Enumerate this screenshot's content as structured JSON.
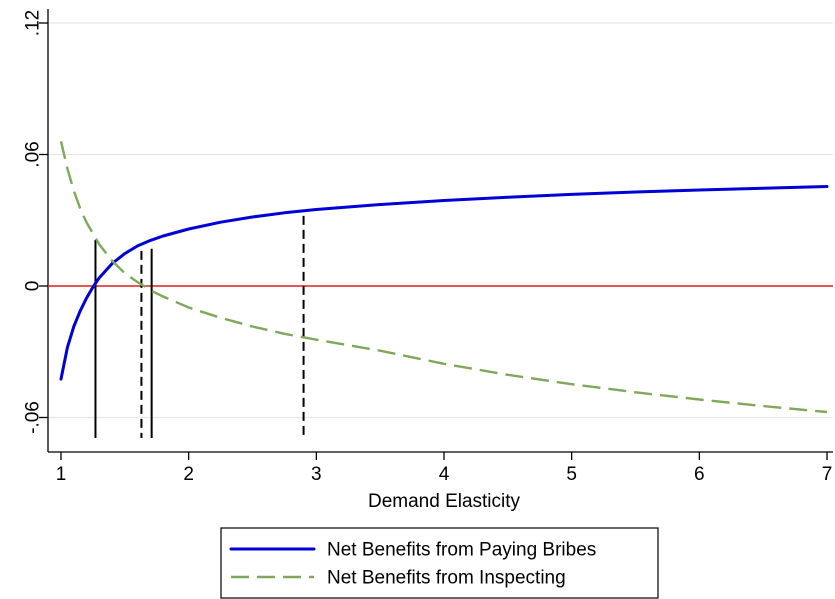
{
  "chart_data": {
    "type": "line",
    "title": "",
    "xlabel": "Demand Elasticity",
    "ylabel": "",
    "xlim": [
      1,
      7
    ],
    "ylim": [
      -0.07,
      0.12
    ],
    "x_ticks": [
      {
        "value": 1,
        "label": "1"
      },
      {
        "value": 2,
        "label": "2"
      },
      {
        "value": 3,
        "label": "3"
      },
      {
        "value": 4,
        "label": "4"
      },
      {
        "value": 5,
        "label": "5"
      },
      {
        "value": 6,
        "label": "6"
      },
      {
        "value": 7,
        "label": "7"
      }
    ],
    "y_ticks": [
      {
        "value": -0.06,
        "label": "-.06"
      },
      {
        "value": 0,
        "label": "0"
      },
      {
        "value": 0.06,
        "label": ".06"
      },
      {
        "value": 0.12,
        "label": ".12"
      }
    ],
    "grid": true,
    "legend_position": "bottom",
    "series": [
      {
        "name": "Net Benefits from Paying Bribes",
        "color": "#0000d6",
        "style": "solid",
        "x": [
          1.0,
          1.05,
          1.1,
          1.15,
          1.2,
          1.25,
          1.3,
          1.4,
          1.5,
          1.6,
          1.7,
          1.8,
          2.0,
          2.25,
          2.5,
          2.75,
          3.0,
          3.5,
          4.0,
          4.5,
          5.0,
          5.5,
          6.0,
          6.5,
          7.0
        ],
        "y": [
          -0.0425,
          -0.028,
          -0.0185,
          -0.0115,
          -0.0055,
          -0.0005,
          0.0038,
          0.0102,
          0.0148,
          0.0183,
          0.0208,
          0.0228,
          0.026,
          0.0291,
          0.0315,
          0.0334,
          0.0349,
          0.0372,
          0.039,
          0.0405,
          0.0418,
          0.0429,
          0.0438,
          0.0446,
          0.0454
        ]
      },
      {
        "name": "Net Benefits from Inspecting",
        "color": "#7fa85a",
        "style": "dashed",
        "x": [
          1.0,
          1.05,
          1.1,
          1.15,
          1.2,
          1.3,
          1.4,
          1.5,
          1.6,
          1.65,
          1.7,
          1.8,
          2.0,
          2.25,
          2.5,
          2.75,
          3.0,
          3.5,
          4.0,
          4.5,
          5.0,
          5.5,
          6.0,
          6.5,
          7.0
        ],
        "y": [
          0.066,
          0.0535,
          0.0435,
          0.0355,
          0.029,
          0.019,
          0.0115,
          0.0058,
          0.0018,
          0.0,
          -0.002,
          -0.0048,
          -0.0098,
          -0.0145,
          -0.0185,
          -0.0218,
          -0.0245,
          -0.0295,
          -0.0355,
          -0.0405,
          -0.0448,
          -0.0485,
          -0.0518,
          -0.0548,
          -0.0575
        ]
      }
    ],
    "reference_line": {
      "y": 0,
      "color": "#e0201c"
    },
    "vertical_markers": [
      {
        "x": 1.27,
        "y_top": 0.021,
        "style": "solid"
      },
      {
        "x": 1.63,
        "y_top": 0.016,
        "style": "dashed"
      },
      {
        "x": 1.71,
        "y_top": 0.017,
        "style": "solid"
      },
      {
        "x": 2.9,
        "y_top": 0.032,
        "style": "dashed"
      }
    ]
  }
}
